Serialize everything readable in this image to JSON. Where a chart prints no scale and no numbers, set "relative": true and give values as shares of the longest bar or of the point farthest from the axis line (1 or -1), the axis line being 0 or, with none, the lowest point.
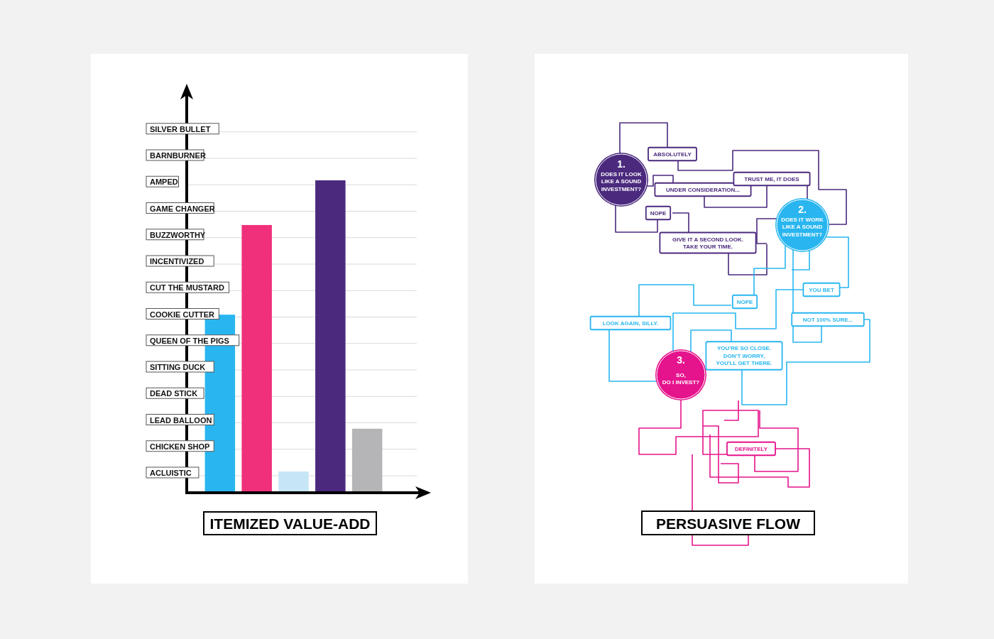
{
  "chart_data": [
    {
      "type": "bar",
      "title": "ITEMIZED VALUE-ADD",
      "relative": true,
      "categories": [
        null,
        null,
        null,
        null,
        null
      ],
      "values": [
        0.57,
        0.857,
        0.068,
        1,
        0.205
      ],
      "colors": [
        "#29b6f0",
        "#f0307a",
        "#c6e6f6",
        "#4b2a7e",
        "#b5b5b7"
      ],
      "annotations": [
        "ACLUISTIC",
        "CHICKEN SHOP",
        "LEAD BALLOON",
        "DEAD STICK",
        "SITTING DUCK",
        "QUEEN OF THE PIGS",
        "COOKIE CUTTER",
        "CUT THE MUSTARD",
        "INCENTIVIZED",
        "BUZZWORTHY",
        "GAME CHANGER",
        "AMPED",
        "BARNBURNER",
        "SILVER BULLET"
      ],
      "grid": true
    },
    {
      "type": "other",
      "title": "PERSUASIVE FLOW",
      "annotations": [
        "1.",
        "DOES IT LOOK LIKE A SOUND INVESTMENT?",
        "ABSOLUTELY",
        "UNDER CONSIDERATION...",
        "NOPE",
        "TRUST ME, IT DOES",
        "GIVE IT A SECOND LOOK. TAKE YOUR TIME.",
        "2.",
        "DOES IT WORK LIKE A SOUND INVESTMENT?",
        "NOPE",
        "YOU BET",
        "LOOK AGAIN, SILLY.",
        "NOT 100% SURE...",
        "YOU'RE SO CLOSE. DON'T WORRY, YOU'LL GET THERE.",
        "3.",
        "SO, DO I INVEST?",
        "DEFINITELY"
      ]
    }
  ]
}
